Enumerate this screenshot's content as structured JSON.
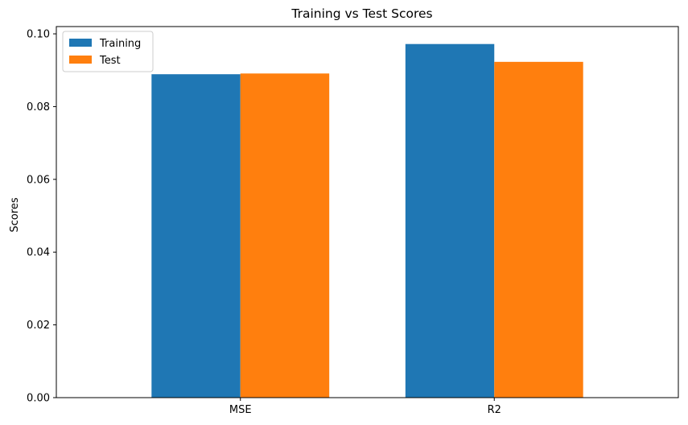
{
  "chart_data": {
    "type": "bar",
    "title": "Training vs Test Scores",
    "xlabel": "",
    "ylabel": "Scores",
    "categories": [
      "MSE",
      "R2"
    ],
    "series": [
      {
        "name": "Training",
        "values": [
          0.0889,
          0.0972
        ],
        "color": "#1f77b4"
      },
      {
        "name": "Test",
        "values": [
          0.0891,
          0.0923
        ],
        "color": "#ff7f0e"
      }
    ],
    "ylim": [
      0,
      0.102
    ],
    "yticks": [
      "0.00",
      "0.02",
      "0.04",
      "0.06",
      "0.08",
      "0.10"
    ],
    "ytick_values": [
      0,
      0.02,
      0.04,
      0.06,
      0.08,
      0.1
    ],
    "grid": false,
    "legend_position": "top-left"
  }
}
